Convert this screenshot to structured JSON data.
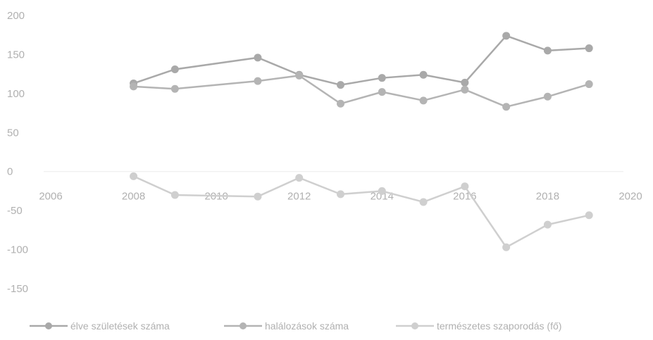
{
  "chart_data": {
    "type": "line",
    "title": "",
    "xlabel": "",
    "ylabel": "",
    "xlim": [
      2006,
      2020
    ],
    "ylim": [
      -150,
      200
    ],
    "x_ticks": [
      2006,
      2008,
      2010,
      2012,
      2014,
      2016,
      2018,
      2020
    ],
    "y_ticks": [
      200,
      150,
      100,
      50,
      0,
      -50,
      -100,
      -150
    ],
    "x_tick_labels": [
      "2006",
      "2008",
      "2010",
      "2012",
      "2014",
      "2016",
      "2018",
      "2020"
    ],
    "y_tick_labels": [
      "200",
      "150",
      "100",
      "50",
      "0",
      "-50",
      "-100",
      "-150"
    ],
    "grid": false,
    "legend_position": "bottom",
    "series": [
      {
        "name": "élve születések száma",
        "color": "#a9a9a9",
        "x": [
          2008,
          2009,
          2011,
          2012,
          2013,
          2014,
          2015,
          2016,
          2017,
          2018,
          2019
        ],
        "values": [
          113,
          131,
          146,
          124,
          111,
          120,
          124,
          114,
          174,
          155,
          158
        ]
      },
      {
        "name": "halálozások száma",
        "color": "#b4b4b4",
        "x": [
          2008,
          2009,
          2011,
          2012,
          2013,
          2014,
          2015,
          2016,
          2017,
          2018,
          2019
        ],
        "values": [
          109,
          106,
          116,
          123,
          87,
          102,
          91,
          105,
          83,
          96,
          112
        ]
      },
      {
        "name": "természetes szaporodás (fő)",
        "color": "#cfcfcf",
        "x": [
          2008,
          2009,
          2011,
          2012,
          2013,
          2014,
          2015,
          2016,
          2017,
          2018,
          2019
        ],
        "values": [
          -6,
          -30,
          -32,
          -8,
          -29,
          -25,
          -39,
          -19,
          -97,
          -68,
          -56
        ]
      }
    ]
  }
}
